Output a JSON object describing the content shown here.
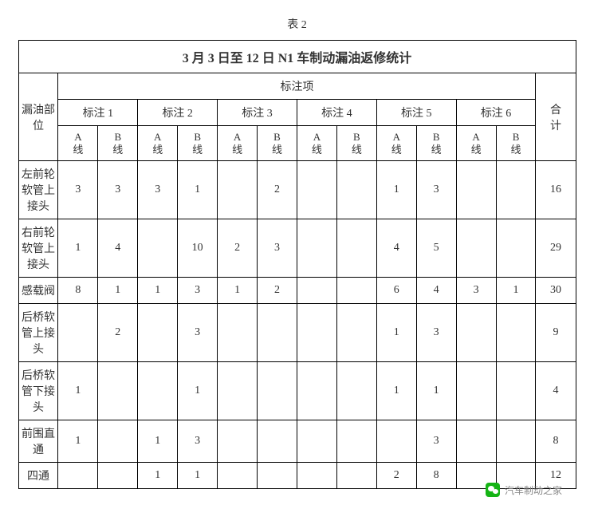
{
  "caption": "表 2",
  "title": "3 月 3 日至 12 日 N1 车制动漏油返修统计",
  "header": {
    "location": "漏油部位",
    "annotation_group": "标注项",
    "annotations": [
      "标注 1",
      "标注 2",
      "标注 3",
      "标注 4",
      "标注 5",
      "标注 6"
    ],
    "line_a": "A\n线",
    "line_b": "B\n线",
    "total": "合\n计"
  },
  "rows": [
    {
      "label": "左前轮软管上接头",
      "cells": [
        "3",
        "3",
        "3",
        "1",
        "",
        "2",
        "",
        "",
        "1",
        "3",
        "",
        ""
      ],
      "total": "16"
    },
    {
      "label": "右前轮软管上接头",
      "cells": [
        "1",
        "4",
        "",
        "10",
        "2",
        "3",
        "",
        "",
        "4",
        "5",
        "",
        ""
      ],
      "total": "29"
    },
    {
      "label": "感载阀",
      "cells": [
        "8",
        "1",
        "1",
        "3",
        "1",
        "2",
        "",
        "",
        "6",
        "4",
        "3",
        "1"
      ],
      "total": "30"
    },
    {
      "label": "后桥软管上接头",
      "cells": [
        "",
        "2",
        "",
        "3",
        "",
        "",
        "",
        "",
        "1",
        "3",
        "",
        ""
      ],
      "total": "9"
    },
    {
      "label": "后桥软管下接头",
      "cells": [
        "1",
        "",
        "",
        "1",
        "",
        "",
        "",
        "",
        "1",
        "1",
        "",
        ""
      ],
      "total": "4"
    },
    {
      "label": "前围直通",
      "cells": [
        "1",
        "",
        "1",
        "3",
        "",
        "",
        "",
        "",
        "",
        "3",
        "",
        ""
      ],
      "total": "8"
    },
    {
      "label": "四通",
      "cells": [
        "",
        "",
        "1",
        "1",
        "",
        "",
        "",
        "",
        "2",
        "8",
        "",
        ""
      ],
      "total": "12"
    }
  ],
  "footer": "汽车制动之家"
}
